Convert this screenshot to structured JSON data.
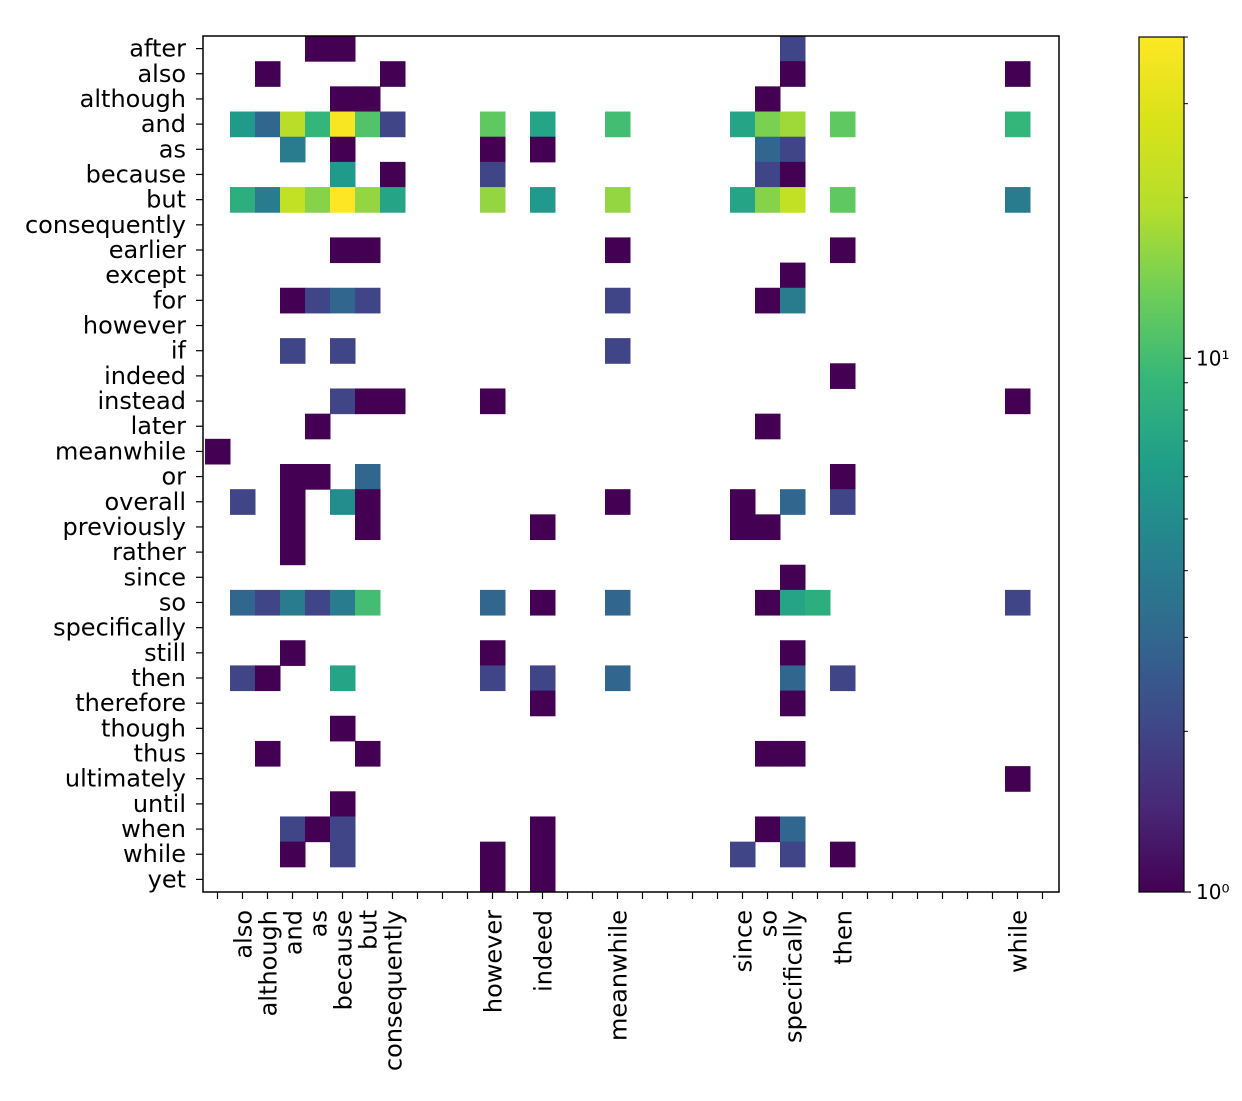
{
  "chart_data": {
    "type": "heatmap",
    "title": "",
    "xlabel": "",
    "ylabel": "",
    "y_categories": [
      "after",
      "also",
      "although",
      "and",
      "as",
      "because",
      "but",
      "consequently",
      "earlier",
      "except",
      "for",
      "however",
      "if",
      "indeed",
      "instead",
      "later",
      "meanwhile",
      "or",
      "overall",
      "previously",
      "rather",
      "since",
      "so",
      "specifically",
      "still",
      "then",
      "therefore",
      "though",
      "thus",
      "ultimately",
      "until",
      "when",
      "while",
      "yet"
    ],
    "x_tick_labels": [
      {
        "col": 1,
        "label": "also"
      },
      {
        "col": 2,
        "label": "although"
      },
      {
        "col": 3,
        "label": "and"
      },
      {
        "col": 4,
        "label": "as"
      },
      {
        "col": 5,
        "label": "because"
      },
      {
        "col": 6,
        "label": "but"
      },
      {
        "col": 7,
        "label": "consequently"
      },
      {
        "col": 11,
        "label": "however"
      },
      {
        "col": 13,
        "label": "indeed"
      },
      {
        "col": 16,
        "label": "meanwhile"
      },
      {
        "col": 21,
        "label": "since"
      },
      {
        "col": 22,
        "label": "so"
      },
      {
        "col": 23,
        "label": "specifically"
      },
      {
        "col": 25,
        "label": "then"
      },
      {
        "col": 32,
        "label": "while"
      }
    ],
    "x_tick_count": 34,
    "color_scale": "log",
    "colormap": "viridis",
    "colorbar_range": [
      1,
      40
    ],
    "colorbar_ticks": [
      {
        "value": 1,
        "label": "10⁰"
      },
      {
        "value": 10,
        "label": "10¹"
      }
    ],
    "cells": [
      {
        "row": 0,
        "col": 4,
        "value": 1
      },
      {
        "row": 0,
        "col": 5,
        "value": 1
      },
      {
        "row": 0,
        "col": 23,
        "value": 2
      },
      {
        "row": 1,
        "col": 2,
        "value": 1
      },
      {
        "row": 1,
        "col": 7,
        "value": 1
      },
      {
        "row": 1,
        "col": 23,
        "value": 1
      },
      {
        "row": 1,
        "col": 32,
        "value": 1
      },
      {
        "row": 2,
        "col": 5,
        "value": 1
      },
      {
        "row": 2,
        "col": 6,
        "value": 1
      },
      {
        "row": 2,
        "col": 22,
        "value": 1
      },
      {
        "row": 3,
        "col": 1,
        "value": 6
      },
      {
        "row": 3,
        "col": 2,
        "value": 3
      },
      {
        "row": 3,
        "col": 3,
        "value": 20
      },
      {
        "row": 3,
        "col": 4,
        "value": 9
      },
      {
        "row": 3,
        "col": 5,
        "value": 38
      },
      {
        "row": 3,
        "col": 6,
        "value": 11
      },
      {
        "row": 3,
        "col": 7,
        "value": 2
      },
      {
        "row": 3,
        "col": 11,
        "value": 12
      },
      {
        "row": 3,
        "col": 13,
        "value": 7
      },
      {
        "row": 3,
        "col": 16,
        "value": 10
      },
      {
        "row": 3,
        "col": 21,
        "value": 7
      },
      {
        "row": 3,
        "col": 22,
        "value": 14
      },
      {
        "row": 3,
        "col": 23,
        "value": 17
      },
      {
        "row": 3,
        "col": 25,
        "value": 12
      },
      {
        "row": 3,
        "col": 32,
        "value": 9
      },
      {
        "row": 4,
        "col": 3,
        "value": 4
      },
      {
        "row": 4,
        "col": 5,
        "value": 1
      },
      {
        "row": 4,
        "col": 11,
        "value": 1
      },
      {
        "row": 4,
        "col": 13,
        "value": 1
      },
      {
        "row": 4,
        "col": 22,
        "value": 3
      },
      {
        "row": 4,
        "col": 23,
        "value": 2
      },
      {
        "row": 5,
        "col": 5,
        "value": 6
      },
      {
        "row": 5,
        "col": 7,
        "value": 1
      },
      {
        "row": 5,
        "col": 11,
        "value": 2
      },
      {
        "row": 5,
        "col": 22,
        "value": 2
      },
      {
        "row": 5,
        "col": 23,
        "value": 1
      },
      {
        "row": 6,
        "col": 1,
        "value": 8
      },
      {
        "row": 6,
        "col": 2,
        "value": 4
      },
      {
        "row": 6,
        "col": 3,
        "value": 22
      },
      {
        "row": 6,
        "col": 4,
        "value": 15
      },
      {
        "row": 6,
        "col": 5,
        "value": 40
      },
      {
        "row": 6,
        "col": 6,
        "value": 16
      },
      {
        "row": 6,
        "col": 7,
        "value": 7
      },
      {
        "row": 6,
        "col": 11,
        "value": 16
      },
      {
        "row": 6,
        "col": 13,
        "value": 6
      },
      {
        "row": 6,
        "col": 16,
        "value": 16
      },
      {
        "row": 6,
        "col": 21,
        "value": 7
      },
      {
        "row": 6,
        "col": 22,
        "value": 15
      },
      {
        "row": 6,
        "col": 23,
        "value": 22
      },
      {
        "row": 6,
        "col": 25,
        "value": 12
      },
      {
        "row": 6,
        "col": 32,
        "value": 4
      },
      {
        "row": 8,
        "col": 5,
        "value": 1
      },
      {
        "row": 8,
        "col": 6,
        "value": 1
      },
      {
        "row": 8,
        "col": 16,
        "value": 1
      },
      {
        "row": 8,
        "col": 25,
        "value": 1
      },
      {
        "row": 9,
        "col": 23,
        "value": 1
      },
      {
        "row": 10,
        "col": 3,
        "value": 1
      },
      {
        "row": 10,
        "col": 4,
        "value": 2
      },
      {
        "row": 10,
        "col": 5,
        "value": 3
      },
      {
        "row": 10,
        "col": 6,
        "value": 2
      },
      {
        "row": 10,
        "col": 16,
        "value": 2
      },
      {
        "row": 10,
        "col": 22,
        "value": 1
      },
      {
        "row": 10,
        "col": 23,
        "value": 4
      },
      {
        "row": 12,
        "col": 3,
        "value": 2
      },
      {
        "row": 12,
        "col": 5,
        "value": 2
      },
      {
        "row": 12,
        "col": 16,
        "value": 2
      },
      {
        "row": 13,
        "col": 25,
        "value": 1
      },
      {
        "row": 14,
        "col": 5,
        "value": 2
      },
      {
        "row": 14,
        "col": 6,
        "value": 1
      },
      {
        "row": 14,
        "col": 7,
        "value": 1
      },
      {
        "row": 14,
        "col": 11,
        "value": 1
      },
      {
        "row": 14,
        "col": 32,
        "value": 1
      },
      {
        "row": 15,
        "col": 4,
        "value": 1
      },
      {
        "row": 15,
        "col": 22,
        "value": 1
      },
      {
        "row": 16,
        "col": 0,
        "value": 1
      },
      {
        "row": 17,
        "col": 3,
        "value": 1
      },
      {
        "row": 17,
        "col": 4,
        "value": 1
      },
      {
        "row": 17,
        "col": 6,
        "value": 3
      },
      {
        "row": 17,
        "col": 25,
        "value": 1
      },
      {
        "row": 18,
        "col": 1,
        "value": 2
      },
      {
        "row": 18,
        "col": 3,
        "value": 1
      },
      {
        "row": 18,
        "col": 5,
        "value": 5
      },
      {
        "row": 18,
        "col": 6,
        "value": 1
      },
      {
        "row": 18,
        "col": 16,
        "value": 1
      },
      {
        "row": 18,
        "col": 21,
        "value": 1
      },
      {
        "row": 18,
        "col": 23,
        "value": 3
      },
      {
        "row": 18,
        "col": 25,
        "value": 2
      },
      {
        "row": 19,
        "col": 3,
        "value": 1
      },
      {
        "row": 19,
        "col": 6,
        "value": 1
      },
      {
        "row": 19,
        "col": 13,
        "value": 1
      },
      {
        "row": 19,
        "col": 21,
        "value": 1
      },
      {
        "row": 19,
        "col": 22,
        "value": 1
      },
      {
        "row": 20,
        "col": 3,
        "value": 1
      },
      {
        "row": 21,
        "col": 23,
        "value": 1
      },
      {
        "row": 22,
        "col": 1,
        "value": 3
      },
      {
        "row": 22,
        "col": 2,
        "value": 2
      },
      {
        "row": 22,
        "col": 3,
        "value": 4
      },
      {
        "row": 22,
        "col": 4,
        "value": 2
      },
      {
        "row": 22,
        "col": 5,
        "value": 4
      },
      {
        "row": 22,
        "col": 6,
        "value": 10
      },
      {
        "row": 22,
        "col": 11,
        "value": 3
      },
      {
        "row": 22,
        "col": 13,
        "value": 1
      },
      {
        "row": 22,
        "col": 16,
        "value": 3
      },
      {
        "row": 22,
        "col": 22,
        "value": 1
      },
      {
        "row": 22,
        "col": 23,
        "value": 7
      },
      {
        "row": 22,
        "col": 24,
        "value": 8
      },
      {
        "row": 22,
        "col": 32,
        "value": 2
      },
      {
        "row": 24,
        "col": 3,
        "value": 1
      },
      {
        "row": 24,
        "col": 11,
        "value": 1
      },
      {
        "row": 24,
        "col": 23,
        "value": 1
      },
      {
        "row": 25,
        "col": 1,
        "value": 2
      },
      {
        "row": 25,
        "col": 2,
        "value": 1
      },
      {
        "row": 25,
        "col": 5,
        "value": 7
      },
      {
        "row": 25,
        "col": 11,
        "value": 2
      },
      {
        "row": 25,
        "col": 13,
        "value": 2
      },
      {
        "row": 25,
        "col": 16,
        "value": 3
      },
      {
        "row": 25,
        "col": 23,
        "value": 3
      },
      {
        "row": 25,
        "col": 25,
        "value": 2
      },
      {
        "row": 26,
        "col": 13,
        "value": 1
      },
      {
        "row": 26,
        "col": 23,
        "value": 1
      },
      {
        "row": 27,
        "col": 5,
        "value": 1
      },
      {
        "row": 28,
        "col": 2,
        "value": 1
      },
      {
        "row": 28,
        "col": 6,
        "value": 1
      },
      {
        "row": 28,
        "col": 22,
        "value": 1
      },
      {
        "row": 28,
        "col": 23,
        "value": 1
      },
      {
        "row": 29,
        "col": 32,
        "value": 1
      },
      {
        "row": 30,
        "col": 5,
        "value": 1
      },
      {
        "row": 31,
        "col": 3,
        "value": 2
      },
      {
        "row": 31,
        "col": 4,
        "value": 1
      },
      {
        "row": 31,
        "col": 5,
        "value": 2
      },
      {
        "row": 31,
        "col": 13,
        "value": 1
      },
      {
        "row": 31,
        "col": 22,
        "value": 1
      },
      {
        "row": 31,
        "col": 23,
        "value": 3
      },
      {
        "row": 32,
        "col": 3,
        "value": 1
      },
      {
        "row": 32,
        "col": 5,
        "value": 2
      },
      {
        "row": 32,
        "col": 11,
        "value": 1
      },
      {
        "row": 32,
        "col": 13,
        "value": 1
      },
      {
        "row": 32,
        "col": 21,
        "value": 2
      },
      {
        "row": 32,
        "col": 23,
        "value": 2
      },
      {
        "row": 32,
        "col": 25,
        "value": 1
      },
      {
        "row": 33,
        "col": 11,
        "value": 1
      },
      {
        "row": 33,
        "col": 13,
        "value": 1
      }
    ]
  }
}
